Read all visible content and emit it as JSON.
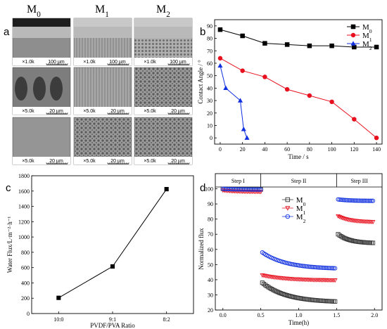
{
  "panel_labels": {
    "a": "a",
    "b": "b",
    "c": "c",
    "d": "d"
  },
  "sem": {
    "columns": [
      "M0",
      "M1",
      "M2"
    ],
    "column_labels": [
      {
        "base": "M",
        "sub": "0"
      },
      {
        "base": "M",
        "sub": "1"
      },
      {
        "base": "M",
        "sub": "2"
      }
    ],
    "rows": [
      {
        "mag": "×1.0k",
        "scale": "100 µm"
      },
      {
        "mag": "×5.0k",
        "scale": "20 µm"
      },
      {
        "mag": "×5.0k",
        "scale": "20 µm"
      }
    ]
  },
  "chart_data": [
    {
      "id": "b",
      "type": "line",
      "xlabel": "Time / s",
      "ylabel": "Contact Angle / °",
      "xlim": [
        -5,
        145
      ],
      "ylim": [
        -5,
        95
      ],
      "xticks": [
        0,
        20,
        40,
        60,
        80,
        100,
        120,
        140
      ],
      "yticks": [
        0,
        10,
        20,
        30,
        40,
        50,
        60,
        70,
        80,
        90
      ],
      "legend_position": "top-right",
      "series": [
        {
          "name": "M0",
          "legend": {
            "base": "M",
            "sub": "0"
          },
          "color": "#000000",
          "marker": "square",
          "x": [
            0,
            20,
            40,
            60,
            80,
            100,
            120,
            140
          ],
          "y": [
            87,
            82,
            76,
            75,
            74,
            74,
            73,
            73
          ]
        },
        {
          "name": "M1",
          "legend": {
            "base": "M",
            "sub": "1"
          },
          "color": "#e8101e",
          "marker": "circle",
          "x": [
            0,
            20,
            40,
            60,
            80,
            100,
            120,
            140
          ],
          "y": [
            64,
            54,
            49,
            39,
            34,
            29,
            15,
            0
          ]
        },
        {
          "name": "M2",
          "legend": {
            "base": "M",
            "sub": "2"
          },
          "color": "#1030e0",
          "marker": "triangle",
          "x": [
            0,
            5,
            18,
            21,
            24
          ],
          "y": [
            58,
            40,
            30,
            7,
            0
          ]
        }
      ]
    },
    {
      "id": "c",
      "type": "line",
      "xlabel": "PVDF/PVA Ratio",
      "ylabel": "Water Flux/L·m⁻²·h⁻¹",
      "ylim": [
        0,
        1800
      ],
      "yticks": [
        0,
        200,
        400,
        600,
        800,
        1000,
        1200,
        1400,
        1600,
        1800
      ],
      "categories": [
        "10:0",
        "9:1",
        "8:2"
      ],
      "series": [
        {
          "color": "#000000",
          "marker": "square",
          "values": [
            205,
            615,
            1625
          ]
        }
      ]
    },
    {
      "id": "d",
      "type": "scatter",
      "xlabel": "Time(h)",
      "ylabel": "Normalized flux",
      "xlim": [
        -0.1,
        2.1
      ],
      "ylim": [
        20,
        110
      ],
      "xticks": [
        0.0,
        0.5,
        1.0,
        1.5,
        2.0
      ],
      "xtick_labels": [
        "0.0",
        "0.5",
        "1.0",
        "1.5",
        "2.0"
      ],
      "yticks": [
        20,
        30,
        40,
        50,
        60,
        70,
        80,
        90,
        100
      ],
      "steps": [
        {
          "label": "Step I",
          "from": -0.1,
          "to": 0.5
        },
        {
          "label": "Step II",
          "from": 0.5,
          "to": 1.5
        },
        {
          "label": "Step III",
          "from": 1.5,
          "to": 2.1
        }
      ],
      "legend_position": "top-center",
      "series": [
        {
          "name": "M0",
          "legend": {
            "base": "M",
            "sub": "0"
          },
          "color": "#333333",
          "marker": "square",
          "segments": [
            {
              "x_start": 0.0,
              "x_end": 0.5,
              "y_start": 100,
              "y_end": 99.5,
              "n": 24
            },
            {
              "x_start": 0.52,
              "x_end": 1.48,
              "y_start": 38,
              "y_end": 25,
              "n": 48
            },
            {
              "x_start": 1.52,
              "x_end": 1.98,
              "y_start": 70,
              "y_end": 64,
              "n": 24
            }
          ]
        },
        {
          "name": "M1",
          "legend": {
            "base": "M",
            "sub": "1"
          },
          "color": "#e8101e",
          "marker": "triangle-down",
          "segments": [
            {
              "x_start": 0.0,
              "x_end": 0.5,
              "y_start": 99,
              "y_end": 98,
              "n": 24
            },
            {
              "x_start": 0.52,
              "x_end": 1.48,
              "y_start": 43,
              "y_end": 39.5,
              "n": 48
            },
            {
              "x_start": 1.52,
              "x_end": 1.98,
              "y_start": 82,
              "y_end": 78,
              "n": 24
            }
          ]
        },
        {
          "name": "M2",
          "legend": {
            "base": "M",
            "sub": "2"
          },
          "color": "#1030e0",
          "marker": "circle",
          "segments": [
            {
              "x_start": 0.0,
              "x_end": 0.5,
              "y_start": 100,
              "y_end": 99.5,
              "n": 24
            },
            {
              "x_start": 0.52,
              "x_end": 1.48,
              "y_start": 58,
              "y_end": 47,
              "n": 48
            },
            {
              "x_start": 1.52,
              "x_end": 1.98,
              "y_start": 93,
              "y_end": 92,
              "n": 24
            }
          ]
        }
      ]
    }
  ]
}
